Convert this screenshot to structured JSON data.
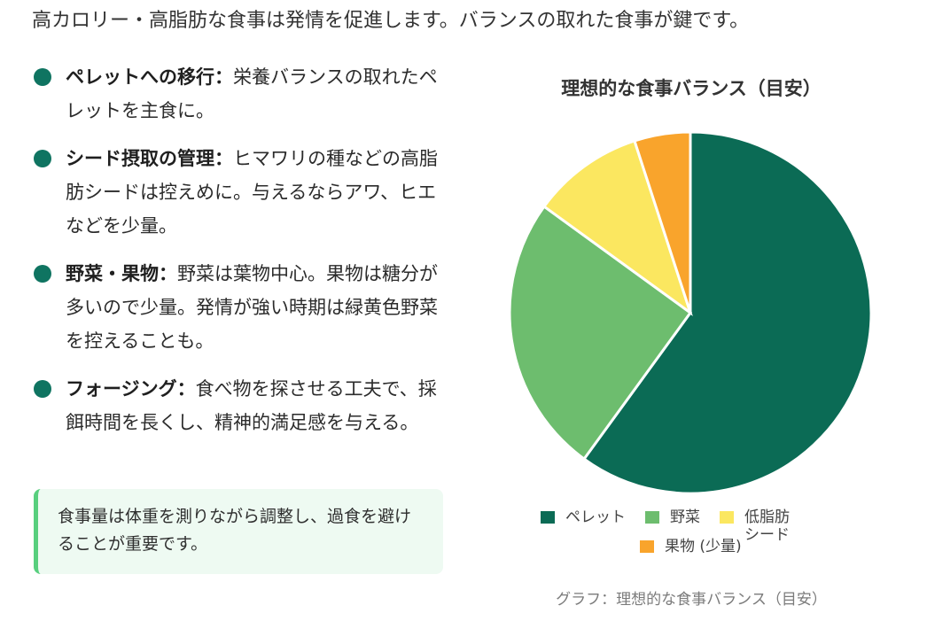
{
  "intro": "高カロリー・高脂肪な食事は発情を促進します。バランスの取れた食事が鍵です。",
  "tips": [
    {
      "title": "ペレットへの移行：",
      "text": "栄養バランスの取れたペレットを主食に。"
    },
    {
      "title": "シード摂取の管理：",
      "text": "ヒマワリの種などの高脂肪シードは控えめに。与えるならアワ、ヒエなどを少量。"
    },
    {
      "title": "野菜・果物：",
      "text": "野菜は葉物中心。果物は糖分が多いので少量。発情が強い時期は緑黄色野菜を控えることも。"
    },
    {
      "title": "フォージング：",
      "text": "食べ物を探させる工夫で、採餌時間を長くし、精神的満足感を与える。"
    }
  ],
  "note": "食事量は体重を測りながら調整し、過食を避けることが重要です。",
  "caption": "グラフ：理想的な食事バランス（目安）",
  "colors": {
    "accent": "#0f7461",
    "note_bg": "#eefaf2",
    "note_border": "#58cf7e"
  },
  "chart_data": {
    "type": "pie",
    "title": "理想的な食事バランス（目安）",
    "categories": [
      "ペレット",
      "野菜",
      "低脂肪シード",
      "果物 (少量)"
    ],
    "values": [
      60,
      25,
      10,
      5
    ],
    "colors": [
      "#0b6b55",
      "#6dbd6e",
      "#fbe760",
      "#f9a42c"
    ],
    "legend_position": "bottom"
  }
}
